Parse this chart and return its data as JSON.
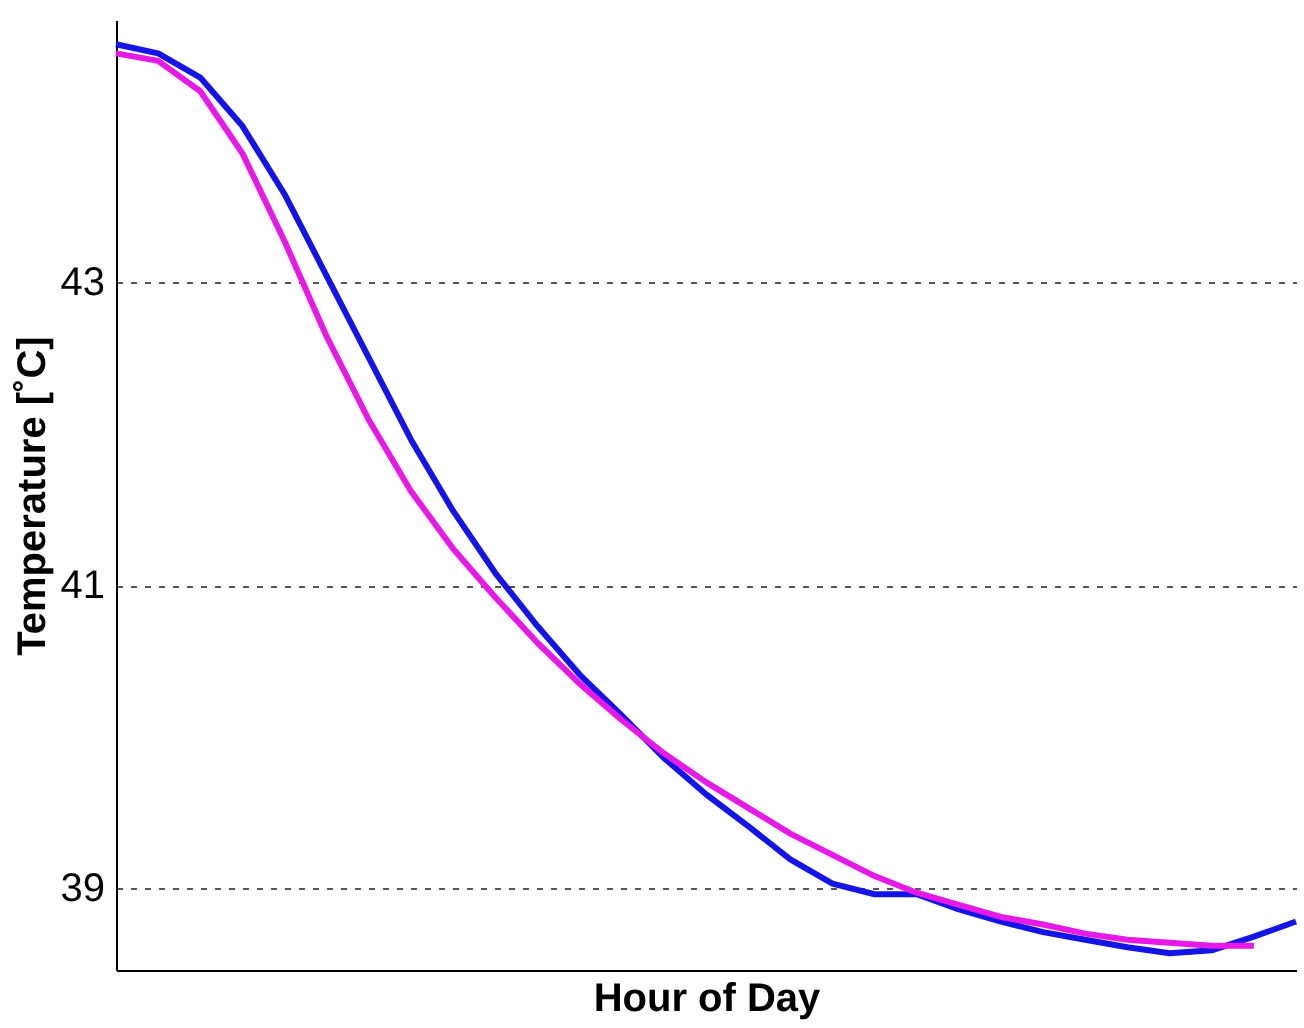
{
  "chart_data": {
    "type": "line",
    "xlabel": "Hour of Day",
    "ylabel": "Temperature [˚C]",
    "categories": [
      null,
      null,
      null,
      null,
      null,
      null,
      null,
      null,
      null,
      null,
      null,
      null,
      null,
      null,
      null,
      null,
      null,
      null,
      null,
      null,
      null,
      null,
      null,
      null,
      null,
      null,
      null,
      null,
      null
    ],
    "series": [
      {
        "color": "#1414e6",
        "values": [
          44.57,
          44.51,
          44.35,
          44.03,
          43.58,
          43.04,
          42.5,
          41.96,
          41.49,
          41.08,
          40.73,
          40.41,
          40.14,
          39.86,
          39.62,
          39.41,
          39.19,
          39.03,
          38.96,
          38.96,
          38.86,
          38.78,
          38.71,
          38.66,
          38.61,
          38.57,
          38.59,
          38.68,
          38.78
        ]
      },
      {
        "color": "#e619e6",
        "values": [
          44.51,
          44.46,
          44.26,
          43.85,
          43.27,
          42.64,
          42.09,
          41.62,
          41.24,
          40.92,
          40.62,
          40.35,
          40.11,
          39.89,
          39.7,
          39.53,
          39.36,
          39.22,
          39.08,
          38.97,
          38.89,
          38.81,
          38.76,
          38.7,
          38.66,
          38.64,
          38.62,
          38.62,
          null
        ]
      }
    ],
    "ylim": [
      38.46,
      44.73
    ],
    "yticks": [
      39,
      41,
      43
    ],
    "grid": "y",
    "tick_labels": "y",
    "line_style": "solid"
  }
}
